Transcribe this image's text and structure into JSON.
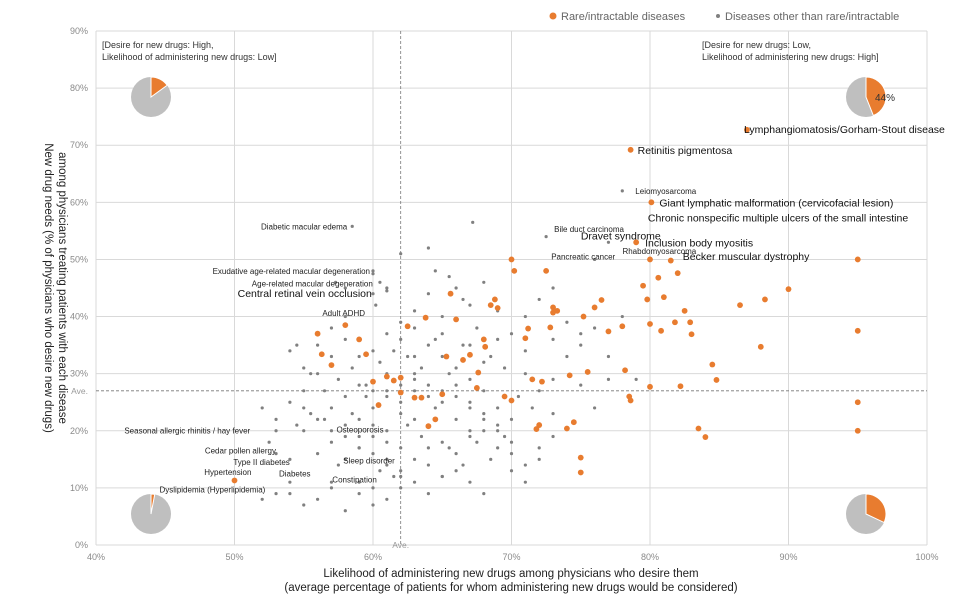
{
  "chart_data": {
    "type": "scatter",
    "xlabel": [
      "Likelihood of administering new drugs among physicians who desire them",
      "(average percentage of patients for whom administering new drugs would be considered)"
    ],
    "ylabel": [
      "New drug needs (% of physicians who desire new drugs)",
      "among physicians treating patients with each disease"
    ],
    "xlim": [
      40,
      100
    ],
    "ylim": [
      0,
      90
    ],
    "xticks": [
      "40%",
      "50%",
      "60%",
      "70%",
      "80%",
      "90%",
      "100%"
    ],
    "yticks": [
      "0%",
      "10%",
      "20%",
      "30%",
      "40%",
      "50%",
      "60%",
      "70%",
      "80%",
      "90%"
    ],
    "average": {
      "x": 62,
      "y": 27,
      "label": "Ave."
    },
    "legend": [
      {
        "name": "Rare/intractable diseases",
        "color": "#e87c2f"
      },
      {
        "name": "Diseases other than rare/intractable",
        "color": "#808080"
      }
    ],
    "quadrant_labels": {
      "top_left": [
        "[Desire for new drugs: High,",
        "Likelihood of administering new drugs: Low]"
      ],
      "top_right": [
        "[Desire for new drugs: Low,",
        "Likelihood of administering new drugs: High]"
      ]
    },
    "pies": [
      {
        "position": "top-left",
        "rare_fraction": 0.15,
        "label": ""
      },
      {
        "position": "top-right",
        "rare_fraction": 0.44,
        "label": "44%"
      },
      {
        "position": "bottom-left",
        "rare_fraction": 0.03,
        "label": ""
      },
      {
        "position": "bottom-right",
        "rare_fraction": 0.32,
        "label": ""
      }
    ],
    "rare_points": [
      [
        56,
        37
      ],
      [
        56.3,
        33.4
      ],
      [
        57,
        31.5
      ],
      [
        58,
        38.5
      ],
      [
        59,
        36
      ],
      [
        59.5,
        33.4
      ],
      [
        60,
        28.6
      ],
      [
        60.4,
        24.5
      ],
      [
        61,
        29.5
      ],
      [
        61.5,
        28.8
      ],
      [
        62,
        29.3
      ],
      [
        62,
        26.7
      ],
      [
        62.5,
        38.3
      ],
      [
        63,
        25.8
      ],
      [
        63.5,
        25.8
      ],
      [
        63.8,
        39.8
      ],
      [
        64,
        20.8
      ],
      [
        64.5,
        22
      ],
      [
        65,
        26.4
      ],
      [
        65.3,
        33
      ],
      [
        65.6,
        44
      ],
      [
        66,
        39.5
      ],
      [
        66.5,
        32.4
      ],
      [
        67,
        33.3
      ],
      [
        67.5,
        27.5
      ],
      [
        67.6,
        30.2
      ],
      [
        68,
        36
      ],
      [
        68.1,
        34.7
      ],
      [
        68.5,
        42
      ],
      [
        68.8,
        43
      ],
      [
        69,
        41.5
      ],
      [
        69.5,
        26
      ],
      [
        70,
        25.3
      ],
      [
        70,
        50
      ],
      [
        70.2,
        48
      ],
      [
        71,
        36.2
      ],
      [
        71.2,
        37.9
      ],
      [
        71.5,
        29
      ],
      [
        71.8,
        20.3
      ],
      [
        72,
        21
      ],
      [
        72.2,
        28.6
      ],
      [
        72.5,
        48
      ],
      [
        72.8,
        38.1
      ],
      [
        73,
        40.7
      ],
      [
        73,
        41.6
      ],
      [
        73.3,
        41
      ],
      [
        74,
        20.4
      ],
      [
        74.2,
        29.7
      ],
      [
        74.5,
        21.5
      ],
      [
        75,
        15.3
      ],
      [
        75,
        12.7
      ],
      [
        75.2,
        40
      ],
      [
        75.5,
        30.3
      ],
      [
        76,
        41.6
      ],
      [
        76.5,
        42.9
      ],
      [
        77,
        37.4
      ],
      [
        78,
        38.3
      ],
      [
        78.2,
        30.6
      ],
      [
        78.5,
        26
      ],
      [
        78.6,
        25.3
      ],
      [
        78.6,
        69.2
      ],
      [
        79,
        53
      ],
      [
        79.5,
        45.4
      ],
      [
        79.8,
        43
      ],
      [
        80,
        38.7
      ],
      [
        80,
        27.7
      ],
      [
        80,
        50
      ],
      [
        80.1,
        60
      ],
      [
        80.6,
        46.8
      ],
      [
        80.8,
        37.5
      ],
      [
        81,
        43.4
      ],
      [
        81.5,
        49.8
      ],
      [
        81.8,
        39
      ],
      [
        82,
        47.6
      ],
      [
        82.2,
        27.8
      ],
      [
        82.5,
        41
      ],
      [
        82.9,
        39
      ],
      [
        83,
        36.9
      ],
      [
        83.5,
        20.4
      ],
      [
        84,
        18.9
      ],
      [
        84.5,
        31.6
      ],
      [
        84.8,
        28.9
      ],
      [
        86.5,
        42
      ],
      [
        87,
        72.7
      ],
      [
        88,
        34.7
      ],
      [
        88.3,
        43
      ],
      [
        90,
        44.8
      ],
      [
        95,
        50
      ],
      [
        95,
        37.5
      ],
      [
        95,
        25
      ],
      [
        95,
        20
      ],
      [
        50,
        11.3
      ]
    ],
    "other_points": [
      [
        52,
        24
      ],
      [
        52.5,
        18
      ],
      [
        53,
        16
      ],
      [
        54,
        15
      ],
      [
        54.5,
        21
      ],
      [
        55,
        20
      ],
      [
        55.5,
        23
      ],
      [
        56,
        16
      ],
      [
        56.5,
        22
      ],
      [
        57,
        11
      ],
      [
        57.5,
        14
      ],
      [
        58,
        19
      ],
      [
        58.5,
        23
      ],
      [
        59,
        17
      ],
      [
        59.5,
        26
      ],
      [
        60,
        21
      ],
      [
        60.5,
        13
      ],
      [
        61,
        18
      ],
      [
        61.5,
        12
      ],
      [
        62,
        17
      ],
      [
        62.5,
        21
      ],
      [
        63,
        15
      ],
      [
        63.5,
        19
      ],
      [
        64,
        14
      ],
      [
        64.5,
        24
      ],
      [
        65,
        12
      ],
      [
        65.5,
        17
      ],
      [
        66,
        22
      ],
      [
        66.5,
        14
      ],
      [
        67,
        20
      ],
      [
        67.5,
        18
      ],
      [
        68,
        23
      ],
      [
        68.5,
        15
      ],
      [
        69,
        21
      ],
      [
        69.5,
        19
      ],
      [
        70,
        16
      ],
      [
        70.5,
        26
      ],
      [
        71,
        14
      ],
      [
        71.5,
        24
      ],
      [
        72,
        17
      ],
      [
        73,
        29
      ],
      [
        74,
        33
      ],
      [
        75,
        28
      ],
      [
        76,
        24
      ],
      [
        77,
        29
      ],
      [
        54,
        9
      ],
      [
        55,
        7
      ],
      [
        56,
        8
      ],
      [
        57,
        10
      ],
      [
        58,
        6
      ],
      [
        59,
        9
      ],
      [
        60,
        7
      ],
      [
        61,
        8
      ],
      [
        62,
        10
      ],
      [
        63,
        11
      ],
      [
        64,
        9
      ],
      [
        65,
        12
      ],
      [
        66,
        13
      ],
      [
        67,
        11
      ],
      [
        68,
        9
      ],
      [
        55.5,
        30
      ],
      [
        56.5,
        27
      ],
      [
        57.5,
        29
      ],
      [
        58.5,
        31
      ],
      [
        59.5,
        28
      ],
      [
        60.5,
        32
      ],
      [
        61.5,
        34
      ],
      [
        62.5,
        33
      ],
      [
        63.5,
        31
      ],
      [
        64.5,
        36
      ],
      [
        65.5,
        30
      ],
      [
        66.5,
        35
      ],
      [
        67.5,
        38
      ],
      [
        68.5,
        33
      ],
      [
        69.5,
        31
      ],
      [
        62,
        39
      ],
      [
        63,
        41
      ],
      [
        64,
        44
      ],
      [
        65,
        40
      ],
      [
        66,
        45
      ],
      [
        67,
        42
      ],
      [
        68,
        46
      ],
      [
        69,
        41
      ],
      [
        64.5,
        48
      ],
      [
        65.5,
        47
      ],
      [
        66.5,
        43
      ],
      [
        57,
        24
      ],
      [
        58,
        26
      ],
      [
        59,
        22
      ],
      [
        60,
        24
      ],
      [
        61,
        26
      ],
      [
        62,
        23
      ],
      [
        63,
        27
      ],
      [
        64,
        26
      ],
      [
        65,
        25
      ],
      [
        66,
        28
      ],
      [
        67,
        25
      ],
      [
        68,
        27
      ],
      [
        69,
        24
      ],
      [
        70,
        22
      ],
      [
        71,
        30
      ],
      [
        72,
        27
      ],
      [
        73,
        23
      ],
      [
        59,
        17
      ],
      [
        60,
        19
      ],
      [
        61,
        15
      ],
      [
        62,
        13
      ],
      [
        63,
        22
      ],
      [
        64,
        17
      ],
      [
        65,
        18
      ],
      [
        66,
        16
      ],
      [
        67,
        19
      ],
      [
        68,
        20
      ],
      [
        69,
        17
      ],
      [
        70,
        18
      ],
      [
        61,
        20
      ],
      [
        63,
        33
      ],
      [
        65,
        37
      ],
      [
        67,
        35
      ],
      [
        69,
        36
      ],
      [
        71,
        34
      ],
      [
        73,
        36
      ],
      [
        75,
        35
      ],
      [
        77,
        33
      ],
      [
        79,
        29
      ],
      [
        76,
        38
      ],
      [
        78,
        40
      ],
      [
        54,
        34
      ],
      [
        55,
        31
      ],
      [
        56,
        35
      ],
      [
        57,
        33
      ],
      [
        54.5,
        35
      ],
      [
        53,
        20
      ],
      [
        55,
        24
      ],
      [
        56,
        22
      ],
      [
        57,
        18
      ],
      [
        58,
        15
      ],
      [
        59,
        11
      ],
      [
        60,
        10
      ],
      [
        52,
        8
      ],
      [
        53,
        9
      ],
      [
        54,
        11
      ],
      [
        61,
        45
      ],
      [
        62,
        36
      ],
      [
        60,
        34
      ],
      [
        61,
        37
      ],
      [
        72.5,
        54
      ],
      [
        76,
        50
      ],
      [
        77,
        53
      ],
      [
        78,
        62
      ],
      [
        58.5,
        55.8
      ],
      [
        67.2,
        56.5
      ],
      [
        60,
        48
      ],
      [
        60,
        47.5
      ],
      [
        60.5,
        46
      ],
      [
        61,
        44.5
      ],
      [
        60,
        44
      ],
      [
        58,
        40
      ],
      [
        60.2,
        42
      ],
      [
        62,
        51
      ],
      [
        64,
        52
      ],
      [
        58,
        45
      ],
      [
        57.3,
        46
      ],
      [
        63,
        38
      ],
      [
        64,
        35
      ],
      [
        65,
        33
      ],
      [
        66,
        31
      ],
      [
        67,
        29
      ],
      [
        68,
        32
      ],
      [
        70,
        37
      ],
      [
        71,
        40
      ],
      [
        72,
        43
      ],
      [
        73,
        45
      ],
      [
        74,
        39
      ],
      [
        75,
        37
      ],
      [
        63,
        30
      ],
      [
        64,
        28
      ],
      [
        65,
        27
      ],
      [
        66,
        26
      ],
      [
        67,
        24
      ],
      [
        68,
        22
      ],
      [
        69,
        20
      ],
      [
        70,
        13
      ],
      [
        71,
        11
      ],
      [
        72,
        15
      ],
      [
        73,
        19
      ],
      [
        61,
        30
      ],
      [
        62,
        28
      ],
      [
        63,
        29
      ],
      [
        59,
        33
      ],
      [
        58,
        36
      ],
      [
        57,
        38
      ],
      [
        56,
        30
      ],
      [
        55,
        27
      ],
      [
        54,
        25
      ],
      [
        53,
        22
      ],
      [
        59,
        28
      ],
      [
        60,
        27
      ],
      [
        61,
        27
      ],
      [
        62,
        25
      ],
      [
        57,
        20
      ],
      [
        58,
        21
      ],
      [
        59,
        19
      ],
      [
        60,
        16
      ],
      [
        61,
        14
      ],
      [
        62,
        12
      ]
    ],
    "annotations": [
      {
        "text": "Lymphangiomatosis/Gorham-Stout disease",
        "x": 87,
        "y": 72.7,
        "size": "large"
      },
      {
        "text": "Retinitis pigmentosa",
        "x": 78.6,
        "y": 69.2,
        "size": "large"
      },
      {
        "text": "Leiomyosarcoma",
        "x": 78,
        "y": 62,
        "size": "small"
      },
      {
        "text": "Giant lymphatic malformation (cervicofacial lesion)",
        "x": 80.1,
        "y": 60,
        "size": "large"
      },
      {
        "text": "Chronic nonspecific multiple ulcers of the small intestine",
        "x": 79.2,
        "y": 58.4,
        "size": "large"
      },
      {
        "text": "Bile duct carcinoma",
        "x": 72.5,
        "y": 54.8,
        "size": "small"
      },
      {
        "text": "Dravet syndrome",
        "x": 74.5,
        "y": 53.5,
        "size": "large"
      },
      {
        "text": "Inclusion body myositis",
        "x": 79,
        "y": 53,
        "size": "large"
      },
      {
        "text": "Rhabdomyosarcoma",
        "x": 77,
        "y": 51.5,
        "size": "small"
      },
      {
        "text": "Pancreatic cancer",
        "x": 72,
        "y": 51,
        "size": "small"
      },
      {
        "text": "Becker muscular dystrophy",
        "x": 81.5,
        "y": 51.8,
        "size": "large"
      },
      {
        "text": "Diabetic macular edema",
        "x": 58.5,
        "y": 55.8,
        "size": "small"
      },
      {
        "text": "Exudative age-related  macular degeneration",
        "x": 60,
        "y": 48,
        "size": "small"
      },
      {
        "text": "Age-related  macular degeneration",
        "x": 60.2,
        "y": 46,
        "size": "small"
      },
      {
        "text": "Central retinal vein occlusion",
        "x": 61,
        "y": 44.5,
        "size": "large"
      },
      {
        "text": "Adult ADHD",
        "x": 60,
        "y": 41.5,
        "size": "small"
      },
      {
        "text": "Seasonal allergic rhinitis / hay fever",
        "x": 52,
        "y": 19.5,
        "size": "small"
      },
      {
        "text": "Osteoporosis",
        "x": 57,
        "y": 19,
        "size": "small"
      },
      {
        "text": "Cedar pollen allergy",
        "x": 53.5,
        "y": 16,
        "size": "small"
      },
      {
        "text": "Sleep disorder",
        "x": 58.5,
        "y": 15,
        "size": "small"
      },
      {
        "text": "Type II diabetes",
        "x": 54.5,
        "y": 14,
        "size": "small"
      },
      {
        "text": "Diabetes",
        "x": 56.5,
        "y": 12.5,
        "size": "small"
      },
      {
        "text": "Hypertension",
        "x": 50.5,
        "y": 12.3,
        "size": "small"
      },
      {
        "text": "Constipation",
        "x": 58,
        "y": 11.5,
        "size": "small"
      },
      {
        "text": "Dyslipidemia (Hyperlipidemia)",
        "x": 50,
        "y": 10.8,
        "size": "small"
      }
    ]
  }
}
